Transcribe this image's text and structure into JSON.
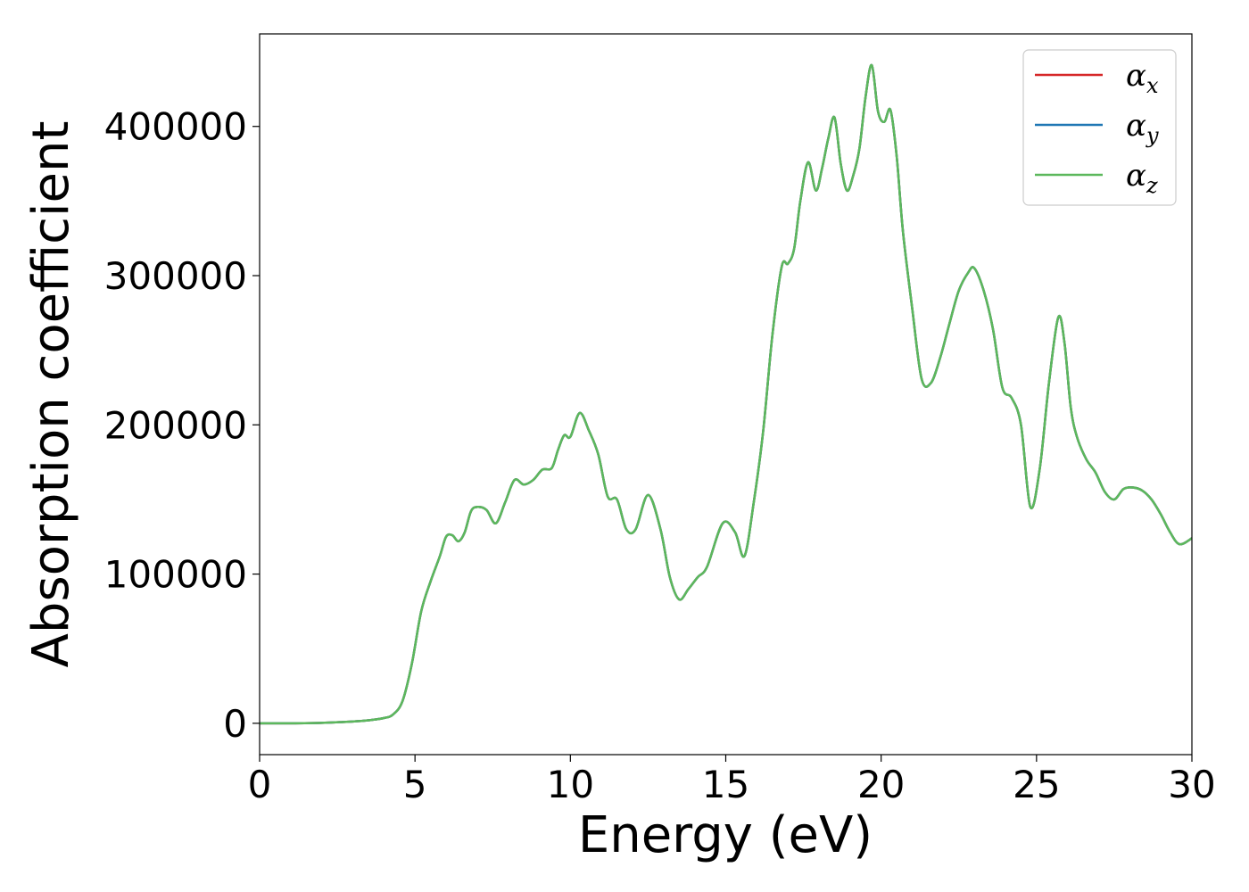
{
  "chart_data": {
    "type": "line",
    "xlabel": "Energy (eV)",
    "ylabel": "Absorption coefficient",
    "xlim": [
      0,
      30
    ],
    "ylim": [
      -21000,
      462000
    ],
    "xticks": [
      0,
      5,
      10,
      15,
      20,
      25,
      30
    ],
    "yticks": [
      0,
      100000,
      200000,
      300000,
      400000
    ],
    "grid": false,
    "legend_position": "top-right",
    "legend": [
      {
        "symbol": "α",
        "sub": "x",
        "color": "#d62728"
      },
      {
        "symbol": "α",
        "sub": "y",
        "color": "#1f77b4"
      },
      {
        "symbol": "α",
        "sub": "z",
        "color": "#5cb85c"
      }
    ],
    "x": [
      0,
      1,
      2,
      3,
      3.5,
      4,
      4.3,
      4.6,
      4.9,
      5.2,
      5.5,
      5.8,
      6.0,
      6.2,
      6.4,
      6.6,
      6.8,
      7.0,
      7.3,
      7.6,
      7.9,
      8.2,
      8.5,
      8.8,
      9.1,
      9.4,
      9.6,
      9.8,
      10.0,
      10.3,
      10.6,
      10.9,
      11.2,
      11.5,
      11.8,
      12.1,
      12.5,
      12.9,
      13.2,
      13.5,
      13.8,
      14.1,
      14.4,
      14.9,
      15.3,
      15.6,
      15.9,
      16.2,
      16.5,
      16.8,
      17.0,
      17.2,
      17.4,
      17.65,
      17.9,
      18.1,
      18.3,
      18.5,
      18.7,
      18.9,
      19.1,
      19.3,
      19.5,
      19.7,
      19.9,
      20.1,
      20.3,
      20.5,
      20.7,
      21.0,
      21.3,
      21.6,
      21.9,
      22.2,
      22.5,
      22.8,
      23.0,
      23.3,
      23.6,
      23.9,
      24.2,
      24.5,
      24.8,
      25.1,
      25.4,
      25.7,
      25.9,
      26.1,
      26.3,
      26.6,
      26.9,
      27.2,
      27.5,
      27.8,
      28.1,
      28.4,
      28.7,
      29.0,
      29.3,
      29.6,
      30.0
    ],
    "series": [
      {
        "name": "α_x",
        "color": "#d62728",
        "y": [
          0,
          0,
          300,
          1200,
          2000,
          3500,
          6000,
          15000,
          40000,
          75000,
          95000,
          112000,
          125000,
          126000,
          122000,
          128000,
          142000,
          145000,
          143000,
          134000,
          148000,
          163000,
          160000,
          163000,
          170000,
          171000,
          183000,
          193000,
          192000,
          208000,
          196000,
          180000,
          152000,
          150000,
          130000,
          130000,
          153000,
          130000,
          98000,
          83000,
          90000,
          98000,
          105000,
          134000,
          128000,
          112000,
          148000,
          195000,
          260000,
          306000,
          308000,
          318000,
          350000,
          376000,
          357000,
          372000,
          392000,
          406000,
          375000,
          357000,
          367000,
          385000,
          420000,
          441000,
          410000,
          403000,
          411000,
          380000,
          330000,
          278000,
          231000,
          228000,
          245000,
          268000,
          290000,
          302000,
          305000,
          290000,
          264000,
          225000,
          218000,
          200000,
          145000,
          170000,
          228000,
          272000,
          255000,
          212000,
          192000,
          177000,
          168000,
          155000,
          150000,
          157000,
          158000,
          156000,
          150000,
          140000,
          128000,
          120000,
          124000
        ]
      },
      {
        "name": "α_y",
        "color": "#1f77b4",
        "y": [
          0,
          0,
          300,
          1200,
          2000,
          3500,
          6000,
          15000,
          40000,
          75000,
          95000,
          112000,
          125000,
          126000,
          122000,
          128000,
          142000,
          145000,
          143000,
          134000,
          148000,
          163000,
          160000,
          163000,
          170000,
          171000,
          183000,
          193000,
          192000,
          208000,
          196000,
          180000,
          152000,
          150000,
          130000,
          130000,
          153000,
          130000,
          98000,
          83000,
          90000,
          98000,
          105000,
          134000,
          128000,
          112000,
          148000,
          195000,
          260000,
          306000,
          308000,
          318000,
          350000,
          376000,
          357000,
          372000,
          392000,
          406000,
          375000,
          357000,
          367000,
          385000,
          420000,
          441000,
          410000,
          403000,
          411000,
          380000,
          330000,
          278000,
          231000,
          228000,
          245000,
          268000,
          290000,
          302000,
          305000,
          290000,
          264000,
          225000,
          218000,
          200000,
          145000,
          170000,
          228000,
          272000,
          255000,
          212000,
          192000,
          177000,
          168000,
          155000,
          150000,
          157000,
          158000,
          156000,
          150000,
          140000,
          128000,
          120000,
          124000
        ]
      },
      {
        "name": "α_z",
        "color": "#5cb85c",
        "y": [
          0,
          0,
          300,
          1200,
          2000,
          3500,
          6000,
          15000,
          40000,
          75000,
          95000,
          112000,
          125000,
          126000,
          122000,
          128000,
          142000,
          145000,
          143000,
          134000,
          148000,
          163000,
          160000,
          163000,
          170000,
          171000,
          183000,
          193000,
          192000,
          208000,
          196000,
          180000,
          152000,
          150000,
          130000,
          130000,
          153000,
          130000,
          98000,
          83000,
          90000,
          98000,
          105000,
          134000,
          128000,
          112000,
          148000,
          195000,
          260000,
          306000,
          308000,
          318000,
          350000,
          376000,
          357000,
          372000,
          392000,
          406000,
          375000,
          357000,
          367000,
          385000,
          420000,
          441000,
          410000,
          403000,
          411000,
          380000,
          330000,
          278000,
          231000,
          228000,
          245000,
          268000,
          290000,
          302000,
          305000,
          290000,
          264000,
          225000,
          218000,
          200000,
          145000,
          170000,
          228000,
          272000,
          255000,
          212000,
          192000,
          177000,
          168000,
          155000,
          150000,
          157000,
          158000,
          156000,
          150000,
          140000,
          128000,
          120000,
          124000
        ]
      }
    ]
  }
}
